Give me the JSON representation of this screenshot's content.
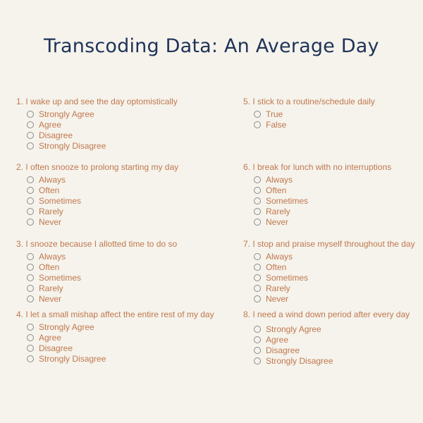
{
  "title": "Transcoding Data: An Average Day",
  "questions": [
    {
      "text": "1. I wake up and see the day optomistically",
      "options": [
        "Strongly Agree",
        "Agree",
        "Disagree",
        "Strongly Disagree"
      ]
    },
    {
      "text": "2. I often snooze to prolong starting my day",
      "options": [
        "Always",
        "Often",
        "Sometimes",
        "Rarely",
        "Never"
      ]
    },
    {
      "text": "3. I snooze because I allotted time to do so",
      "options": [
        "Always",
        "Often",
        "Sometimes",
        "Rarely",
        "Never"
      ]
    },
    {
      "text": "4. I let a small mishap affect the entire rest of my day",
      "options": [
        "Strongly Agree",
        "Agree",
        "Disagree",
        "Strongly Disagree"
      ]
    },
    {
      "text": "5. I stick to a routine/schedule daily",
      "options": [
        "True",
        "False"
      ]
    },
    {
      "text": "6. I break for lunch with no interruptions",
      "options": [
        "Always",
        "Often",
        "Sometimes",
        "Rarely",
        "Never"
      ]
    },
    {
      "text": "7. I stop and praise myself throughout the day",
      "options": [
        "Always",
        "Often",
        "Sometimes",
        "Rarely",
        "Never"
      ]
    },
    {
      "text": "8. I need a wind down period after every day",
      "options": [
        "Strongly Agree",
        "Agree",
        "Disagree",
        "Strongly Disagree"
      ]
    }
  ]
}
